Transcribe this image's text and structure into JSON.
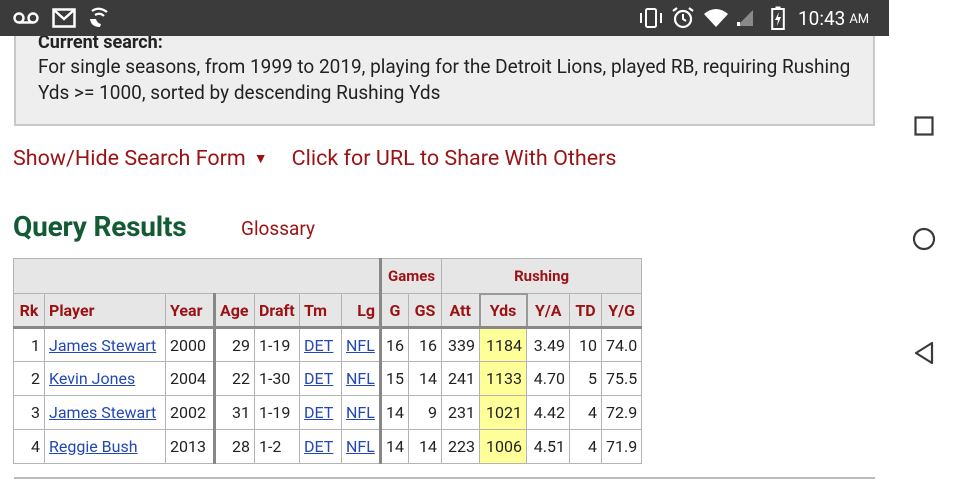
{
  "status_bar": {
    "time": "10:43",
    "ampm": "AM",
    "icons": [
      "voicemail-icon",
      "gmail-icon",
      "wifi-calling-icon",
      "vibrate-icon",
      "alarm-icon",
      "wifi-icon",
      "signal-icon",
      "battery-charging-icon"
    ]
  },
  "search": {
    "title": "Current search:",
    "description": "For single seasons, from 1999 to 2019, playing for the Detroit Lions, played RB, requiring Rushing Yds >= 1000, sorted by descending Rushing Yds"
  },
  "links": {
    "toggle_form": "Show/Hide Search Form",
    "toggle_caret": "▼",
    "share_url": "Click for URL to Share With Others"
  },
  "results": {
    "heading": "Query Results",
    "glossary": "Glossary"
  },
  "table": {
    "over_headers": {
      "games": "Games",
      "rushing": "Rushing"
    },
    "columns": [
      "Rk",
      "Player",
      "Year",
      "Age",
      "Draft",
      "Tm",
      "Lg",
      "G",
      "GS",
      "Att",
      "Yds",
      "Y/A",
      "TD",
      "Y/G"
    ],
    "rows": [
      {
        "rk": "1",
        "player": "James Stewart",
        "year": "2000",
        "age": "29",
        "draft": "1-19",
        "tm": "DET",
        "lg": "NFL",
        "g": "16",
        "gs": "16",
        "att": "339",
        "yds": "1184",
        "ya": "3.49",
        "td": "10",
        "yg": "74.0"
      },
      {
        "rk": "2",
        "player": "Kevin Jones",
        "year": "2004",
        "age": "22",
        "draft": "1-30",
        "tm": "DET",
        "lg": "NFL",
        "g": "15",
        "gs": "14",
        "att": "241",
        "yds": "1133",
        "ya": "4.70",
        "td": "5",
        "yg": "75.5"
      },
      {
        "rk": "3",
        "player": "James Stewart",
        "year": "2002",
        "age": "31",
        "draft": "1-19",
        "tm": "DET",
        "lg": "NFL",
        "g": "14",
        "gs": "9",
        "att": "231",
        "yds": "1021",
        "ya": "4.42",
        "td": "4",
        "yg": "72.9"
      },
      {
        "rk": "4",
        "player": "Reggie Bush",
        "year": "2013",
        "age": "28",
        "draft": "1-2",
        "tm": "DET",
        "lg": "NFL",
        "g": "14",
        "gs": "14",
        "att": "223",
        "yds": "1006",
        "ya": "4.51",
        "td": "4",
        "yg": "71.9"
      }
    ]
  },
  "nav_bar": {
    "buttons": [
      "recents-square-icon",
      "home-circle-icon",
      "back-triangle-icon"
    ]
  },
  "colors": {
    "accent_red": "#9b1214",
    "heading_green": "#135b34",
    "link_blue": "#2348b5",
    "highlight": "#ffff99",
    "status_bg": "#3b3b3b"
  }
}
